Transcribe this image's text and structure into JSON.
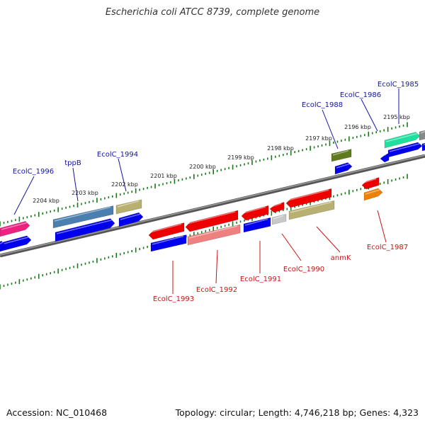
{
  "title": "Escherichia coli ATCC 8739, complete genome",
  "footer": {
    "accession": "Accession: NC_010468",
    "summary": "Topology: circular; Length: 4,746,218 bp; Genes: 4,323"
  },
  "kbp_labels": [
    "2195 kbp",
    "2196 kbp",
    "2197 kbp",
    "2198 kbp",
    "2199 kbp",
    "2200 kbp",
    "2201 kbp",
    "2202 kbp",
    "2203 kbp",
    "2204 kbp"
  ],
  "gene_labels_top": [
    "EcolC_1985",
    "EcolC_1986",
    "EcolC_1988",
    "EcolC_1994",
    "tppB",
    "EcolC_1996"
  ],
  "gene_labels_bottom": [
    "EcolC_1987",
    "anmK",
    "EcolC_1990",
    "EcolC_1991",
    "EcolC_1992",
    "EcolC_1993"
  ],
  "colors": {
    "backbone": "#777777",
    "scale_ticks": "#1a7a1a",
    "label_top": "#1414a0",
    "label_bottom": "#c81414",
    "cds": "#0000ee",
    "gene_red": "#ee0000",
    "gene_pink": "#ee8080",
    "gene_steel": "#4a7fb0",
    "gene_khaki": "#b8b070",
    "gene_olive": "#607a20",
    "gene_teal": "#20e0a0",
    "gene_magenta": "#ee2080",
    "gene_orange": "#ee8000",
    "gene_grey": "#c8c8c8"
  }
}
